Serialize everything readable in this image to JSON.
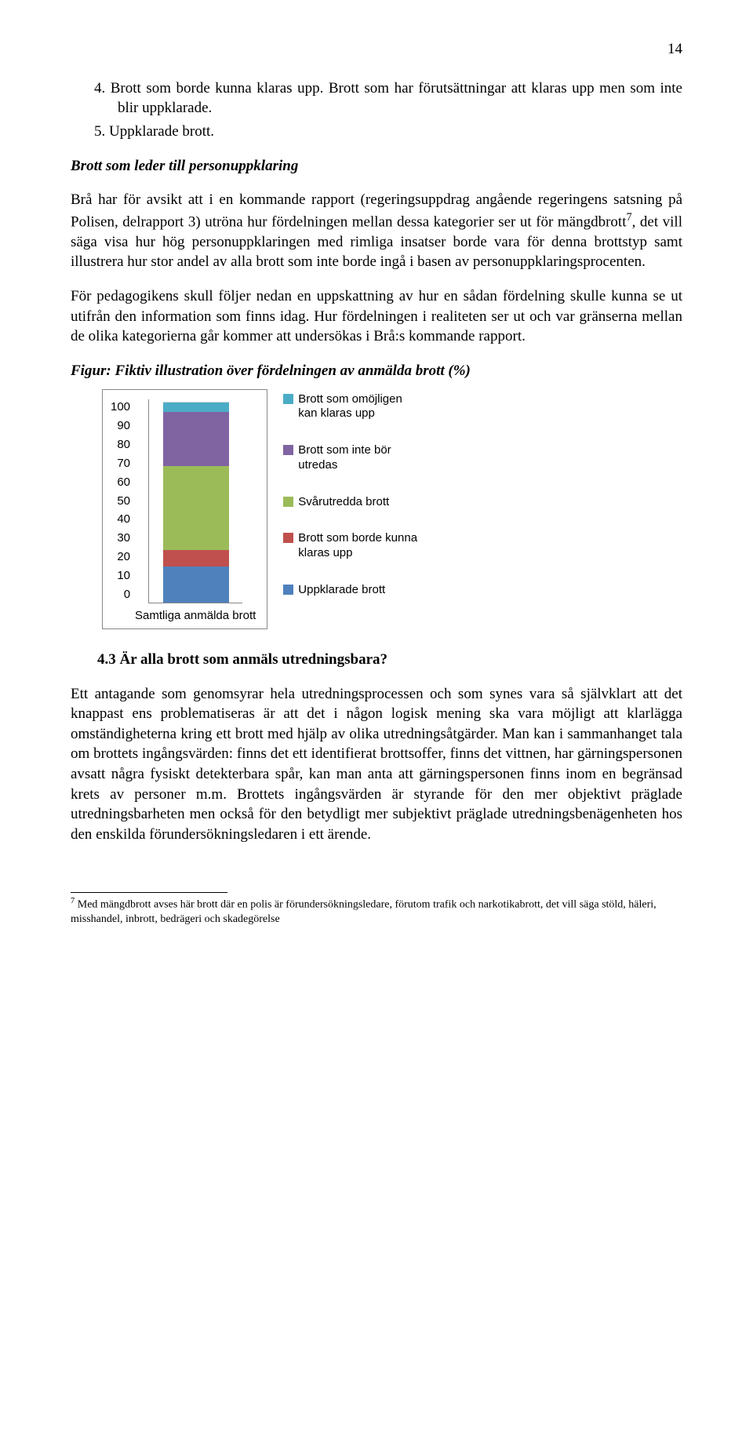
{
  "page_number": "14",
  "list": {
    "item4": "4.  Brott som borde kunna klaras upp. Brott som har förutsättningar att klaras upp men som inte blir uppklarade.",
    "item5": "5.  Uppklarade brott."
  },
  "subheading": "Brott som leder till personuppklaring",
  "para1a": "Brå har för avsikt att i en kommande rapport (regeringsuppdrag angående regeringens satsning på Polisen, delrapport 3) utröna hur fördelningen mellan dessa kategorier ser ut för mängdbrott",
  "para1_sup": "7",
  "para1b": ", det vill säga visa hur hög personuppklaringen med rimliga insatser borde vara för denna brottstyp samt illustrera hur stor andel av alla brott som inte borde ingå i basen av personuppklaringsprocenten.",
  "para2": "För pedagogikens skull följer nedan en uppskattning av hur en sådan fördelning skulle kunna se ut utifrån den information som finns idag. Hur fördelningen i realiteten ser ut och var gränserna mellan de olika kategorierna går kommer att undersökas i Brå:s kommande rapport.",
  "figure_caption": "Figur: Fiktiv illustration över fördelningen av anmälda brott (%)",
  "chart": {
    "type": "stacked-bar",
    "ylim": [
      0,
      100
    ],
    "ytick_step": 10,
    "yticks": [
      "100",
      "90",
      "80",
      "70",
      "60",
      "50",
      "40",
      "30",
      "20",
      "10",
      "0"
    ],
    "x_label": "Samtliga anmälda brott",
    "series": [
      {
        "key": "uppklarade",
        "label": "Uppklarade brott",
        "value": 18,
        "color": "#4f81bd"
      },
      {
        "key": "borde",
        "label": "Brott som borde kunna klaras upp",
        "value": 8,
        "color": "#c0504d"
      },
      {
        "key": "svarutredda",
        "label": "Svårutredda brott",
        "value": 42,
        "color": "#9bbb59"
      },
      {
        "key": "bor_ej",
        "label": "Brott som inte bör utredas",
        "value": 27,
        "color": "#8064a2"
      },
      {
        "key": "omojligen",
        "label": "Brott som omöjligen kan klaras upp",
        "value": 5,
        "color": "#4bacc6"
      }
    ],
    "legend_order": [
      "omojligen",
      "bor_ej",
      "svarutredda",
      "borde",
      "uppklarade"
    ],
    "background": "#ffffff",
    "border_color": "#888888",
    "axis_font": "Arial",
    "axis_fontsize": 15
  },
  "h43": "4.3 Är alla brott som anmäls utredningsbara?",
  "para3": "Ett antagande som genomsyrar hela utredningsprocessen och som synes vara så självklart att det knappast ens problematiseras är att det i någon logisk mening ska vara möjligt att klarlägga omständigheterna kring ett brott med hjälp av olika utredningsåtgärder. Man kan i sammanhanget tala om brottets ingångsvärden: finns det ett identifierat brottsoffer, finns det vittnen, har gärningspersonen avsatt några fysiskt detekterbara spår, kan man anta att gärningspersonen finns inom en begränsad krets av personer m.m. Brottets ingångsvärden är styrande för den mer objektivt präglade utredningsbarheten men också för den betydligt mer subjektivt präglade utredningsbenägenheten hos den enskilda förundersökningsledaren i ett ärende.",
  "footnote_num": "7",
  "footnote_text": " Med mängdbrott avses här brott där en polis är förundersökningsledare, förutom trafik och narkotikabrott, det vill säga stöld, häleri, misshandel, inbrott, bedrägeri och skadegörelse"
}
